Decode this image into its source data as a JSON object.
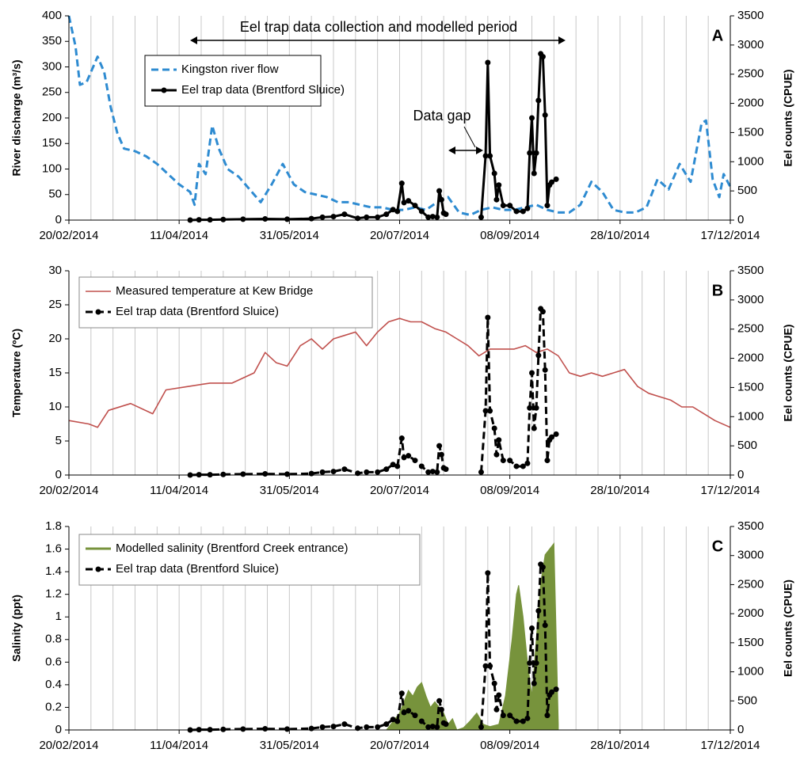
{
  "chart_data": [
    {
      "type": "line",
      "panel": "A",
      "ylabel": "River discharge (m³/s)",
      "y2label": "Eel counts (CPUE)",
      "annotations": [
        "Eel trap data collection and modelled period",
        "Data gap"
      ],
      "xlim": [
        "20/02/2014",
        "17/12/2014"
      ],
      "xticks": [
        "20/02/2014",
        "11/04/2014",
        "31/05/2014",
        "20/07/2014",
        "08/09/2014",
        "28/10/2014",
        "17/12/2014"
      ],
      "ylim": [
        0,
        400
      ],
      "yticks": [
        0,
        50,
        100,
        150,
        200,
        250,
        300,
        350,
        400
      ],
      "y2lim": [
        0,
        3500
      ],
      "y2ticks": [
        0,
        500,
        1000,
        1500,
        2000,
        2500,
        3000,
        3500
      ],
      "grid": true,
      "series": [
        {
          "name": "Kingston river flow",
          "color": "#2e8bd1",
          "style": "dashed",
          "markers": false,
          "x": [
            "20/02/2014",
            "23/02/2014",
            "25/02/2014",
            "28/02/2014",
            "03/03/2014",
            "05/03/2014",
            "08/03/2014",
            "11/03/2014",
            "14/03/2014",
            "17/03/2014",
            "22/03/2014",
            "27/03/2014",
            "01/04/2014",
            "06/04/2014",
            "11/04/2014",
            "16/04/2014",
            "18/04/2014",
            "20/04/2014",
            "23/04/2014",
            "26/04/2014",
            "29/04/2014",
            "03/05/2014",
            "08/05/2014",
            "13/05/2014",
            "18/05/2014",
            "23/05/2014",
            "28/05/2014",
            "02/06/2014",
            "07/06/2014",
            "12/06/2014",
            "17/06/2014",
            "22/06/2014",
            "27/06/2014",
            "02/07/2014",
            "07/07/2014",
            "12/07/2014",
            "17/07/2014",
            "22/07/2014",
            "27/07/2014",
            "01/08/2014",
            "06/08/2014",
            "11/08/2014",
            "16/08/2014",
            "21/08/2014",
            "26/08/2014",
            "31/08/2014",
            "05/09/2014",
            "10/09/2014",
            "15/09/2014",
            "20/09/2014",
            "25/09/2014",
            "30/09/2014",
            "05/10/2014",
            "10/10/2014",
            "15/10/2014",
            "20/10/2014",
            "25/10/2014",
            "30/10/2014",
            "04/11/2014",
            "09/11/2014",
            "14/11/2014",
            "19/11/2014",
            "24/11/2014",
            "29/11/2014",
            "04/12/2014",
            "06/12/2014",
            "09/12/2014",
            "12/12/2014",
            "14/12/2014",
            "17/12/2014"
          ],
          "values": [
            400,
            340,
            265,
            270,
            300,
            320,
            290,
            220,
            170,
            140,
            135,
            125,
            110,
            90,
            70,
            55,
            30,
            110,
            90,
            185,
            140,
            100,
            85,
            60,
            35,
            70,
            110,
            70,
            55,
            50,
            45,
            35,
            35,
            30,
            25,
            25,
            20,
            20,
            25,
            20,
            35,
            45,
            15,
            10,
            20,
            25,
            20,
            20,
            25,
            30,
            20,
            15,
            15,
            30,
            75,
            55,
            20,
            15,
            15,
            25,
            80,
            60,
            110,
            75,
            190,
            195,
            80,
            45,
            90,
            65
          ]
        },
        {
          "name": "Eel trap data (Brentford Sluice)",
          "color": "#000000",
          "style": "solid",
          "markers": true,
          "axis": "y2",
          "x": [
            "16/04/2014",
            "20/04/2014",
            "25/04/2014",
            "01/05/2014",
            "10/05/2014",
            "20/05/2014",
            "30/05/2014",
            "10/06/2014",
            "15/06/2014",
            "20/06/2014",
            "25/06/2014",
            "01/07/2014",
            "05/07/2014",
            "10/07/2014",
            "14/07/2014",
            "17/07/2014",
            "19/07/2014",
            "21/07/2014",
            "22/07/2014",
            "24/07/2014",
            "27/07/2014",
            "30/07/2014",
            "02/08/2014",
            "04/08/2014",
            "06/08/2014",
            "07/08/2014",
            "08/08/2014",
            "09/08/2014",
            "10/08/2014",
            "18/08/2014",
            "26/08/2014",
            "28/08/2014",
            "29/08/2014",
            "30/08/2014",
            "01/09/2014",
            "02/09/2014",
            "03/09/2014",
            "05/09/2014",
            "08/09/2014",
            "11/09/2014",
            "14/09/2014",
            "16/09/2014",
            "17/09/2014",
            "18/09/2014",
            "19/09/2014",
            "20/09/2014",
            "21/09/2014",
            "22/09/2014",
            "23/09/2014",
            "24/09/2014",
            "25/09/2014",
            "26/09/2014",
            "27/09/2014",
            "29/09/2014"
          ],
          "values": [
            0,
            5,
            5,
            10,
            15,
            20,
            15,
            25,
            50,
            60,
            100,
            30,
            50,
            50,
            100,
            180,
            150,
            630,
            300,
            330,
            250,
            150,
            50,
            60,
            50,
            500,
            350,
            120,
            100,
            null,
            50,
            1100,
            2700,
            1100,
            800,
            350,
            600,
            250,
            250,
            150,
            150,
            200,
            1150,
            1750,
            800,
            1150,
            2050,
            2850,
            2800,
            1800,
            250,
            600,
            650,
            700
          ]
        }
      ]
    },
    {
      "type": "line",
      "panel": "B",
      "ylabel": "Temperature (ºC)",
      "y2label": "Eel counts (CPUE)",
      "xlim": [
        "20/02/2014",
        "17/12/2014"
      ],
      "xticks": [
        "20/02/2014",
        "11/04/2014",
        "31/05/2014",
        "20/07/2014",
        "08/09/2014",
        "28/10/2014",
        "17/12/2014"
      ],
      "ylim": [
        0,
        30
      ],
      "yticks": [
        0,
        5,
        10,
        15,
        20,
        25,
        30
      ],
      "y2lim": [
        0,
        3500
      ],
      "y2ticks": [
        0,
        500,
        1000,
        1500,
        2000,
        2500,
        3000,
        3500
      ],
      "grid": true,
      "series": [
        {
          "name": "Measured temperature at Kew Bridge",
          "color": "#c0504d",
          "style": "thin",
          "markers": false,
          "x": [
            "20/02/2014",
            "01/03/2014",
            "05/03/2014",
            "10/03/2014",
            "20/03/2014",
            "30/03/2014",
            "05/04/2014",
            "15/04/2014",
            "25/04/2014",
            "05/05/2014",
            "15/05/2014",
            "20/05/2014",
            "25/05/2014",
            "30/05/2014",
            "05/06/2014",
            "10/06/2014",
            "15/06/2014",
            "20/06/2014",
            "25/06/2014",
            "30/06/2014",
            "05/07/2014",
            "10/07/2014",
            "15/07/2014",
            "20/07/2014",
            "25/07/2014",
            "30/07/2014",
            "05/08/2014",
            "10/08/2014",
            "15/08/2014",
            "20/08/2014",
            "25/08/2014",
            "30/08/2014",
            "05/09/2014",
            "10/09/2014",
            "15/09/2014",
            "20/09/2014",
            "25/09/2014",
            "30/09/2014",
            "05/10/2014",
            "10/10/2014",
            "15/10/2014",
            "20/10/2014",
            "25/10/2014",
            "30/10/2014",
            "05/11/2014",
            "10/11/2014",
            "15/11/2014",
            "20/11/2014",
            "25/11/2014",
            "30/11/2014",
            "05/12/2014",
            "10/12/2014",
            "17/12/2014"
          ],
          "values": [
            8,
            7.5,
            7,
            9.5,
            10.5,
            9,
            12.5,
            13,
            13.5,
            13.5,
            15,
            18,
            16.5,
            16,
            19,
            20,
            18.5,
            20,
            20.5,
            21,
            19,
            21,
            22.5,
            23,
            22.5,
            22.5,
            21.5,
            21,
            20,
            19,
            17.5,
            18.5,
            18.5,
            18.5,
            19,
            18,
            18.5,
            17.5,
            15,
            14.5,
            15,
            14.5,
            15,
            15.5,
            13,
            12,
            11.5,
            11,
            10,
            10,
            9,
            8,
            7
          ]
        },
        {
          "name": "Eel trap data (Brentford Sluice)",
          "color": "#000000",
          "style": "dashed",
          "markers": true,
          "axis": "y2",
          "x": [
            "16/04/2014",
            "20/04/2014",
            "25/04/2014",
            "01/05/2014",
            "10/05/2014",
            "20/05/2014",
            "30/05/2014",
            "10/06/2014",
            "15/06/2014",
            "20/06/2014",
            "25/06/2014",
            "01/07/2014",
            "05/07/2014",
            "10/07/2014",
            "14/07/2014",
            "17/07/2014",
            "19/07/2014",
            "21/07/2014",
            "22/07/2014",
            "24/07/2014",
            "27/07/2014",
            "30/07/2014",
            "02/08/2014",
            "04/08/2014",
            "06/08/2014",
            "07/08/2014",
            "08/08/2014",
            "09/08/2014",
            "10/08/2014",
            "18/08/2014",
            "26/08/2014",
            "28/08/2014",
            "29/08/2014",
            "30/08/2014",
            "01/09/2014",
            "02/09/2014",
            "03/09/2014",
            "05/09/2014",
            "08/09/2014",
            "11/09/2014",
            "14/09/2014",
            "16/09/2014",
            "17/09/2014",
            "18/09/2014",
            "19/09/2014",
            "20/09/2014",
            "21/09/2014",
            "22/09/2014",
            "23/09/2014",
            "24/09/2014",
            "25/09/2014",
            "26/09/2014",
            "27/09/2014",
            "29/09/2014"
          ],
          "values": [
            0,
            5,
            5,
            10,
            15,
            20,
            15,
            25,
            50,
            60,
            100,
            30,
            50,
            50,
            100,
            180,
            150,
            630,
            300,
            330,
            250,
            150,
            50,
            60,
            50,
            500,
            350,
            120,
            100,
            null,
            50,
            1100,
            2700,
            1100,
            800,
            350,
            600,
            250,
            250,
            150,
            150,
            200,
            1150,
            1750,
            800,
            1150,
            2050,
            2850,
            2800,
            1800,
            250,
            600,
            650,
            700
          ]
        }
      ]
    },
    {
      "type": "line",
      "panel": "C",
      "ylabel": "Salinity (ppt)",
      "y2label": "Eel counts (CPUE)",
      "xlim": [
        "20/02/2014",
        "17/12/2014"
      ],
      "xticks": [
        "20/02/2014",
        "11/04/2014",
        "31/05/2014",
        "20/07/2014",
        "08/09/2014",
        "28/10/2014",
        "17/12/2014"
      ],
      "ylim": [
        0,
        1.8
      ],
      "yticks": [
        0,
        0.2,
        0.4,
        0.6,
        0.8,
        1,
        1.2,
        1.4,
        1.6,
        1.8
      ],
      "y2lim": [
        0,
        3500
      ],
      "y2ticks": [
        0,
        500,
        1000,
        1500,
        2000,
        2500,
        3000,
        3500
      ],
      "grid": true,
      "series": [
        {
          "name": "Modelled salinity (Brentford Creek entrance)",
          "color": "#77933c",
          "style": "area",
          "markers": false,
          "x": [
            "14/07/2014",
            "18/07/2014",
            "20/07/2014",
            "22/07/2014",
            "24/07/2014",
            "26/07/2014",
            "28/07/2014",
            "30/07/2014",
            "01/08/2014",
            "03/08/2014",
            "05/08/2014",
            "07/08/2014",
            "09/08/2014",
            "11/08/2014",
            "13/08/2014",
            "15/08/2014",
            "18/08/2014",
            "21/08/2014",
            "24/08/2014",
            "27/08/2014",
            "30/08/2014",
            "03/09/2014",
            "06/09/2014",
            "09/09/2014",
            "11/09/2014",
            "12/09/2014",
            "14/09/2014",
            "16/09/2014",
            "18/09/2014",
            "20/09/2014",
            "22/09/2014",
            "24/09/2014",
            "26/09/2014",
            "28/09/2014",
            "30/09/2014"
          ],
          "values": [
            0,
            0.1,
            0.15,
            0.25,
            0.35,
            0.3,
            0.38,
            0.42,
            0.3,
            0.2,
            0.25,
            0.2,
            0.15,
            0.05,
            0.1,
            0,
            0.02,
            0.08,
            0.15,
            0.05,
            0.03,
            0.05,
            0.3,
            0.8,
            1.2,
            1.28,
            1,
            0.6,
            0.3,
            0.8,
            1.3,
            1.55,
            1.6,
            1.65,
            0.05
          ]
        },
        {
          "name": "Eel trap data (Brentford Sluice)",
          "color": "#000000",
          "style": "dashed",
          "markers": true,
          "axis": "y2",
          "x": [
            "16/04/2014",
            "20/04/2014",
            "25/04/2014",
            "01/05/2014",
            "10/05/2014",
            "20/05/2014",
            "30/05/2014",
            "10/06/2014",
            "15/06/2014",
            "20/06/2014",
            "25/06/2014",
            "01/07/2014",
            "05/07/2014",
            "10/07/2014",
            "14/07/2014",
            "17/07/2014",
            "19/07/2014",
            "21/07/2014",
            "22/07/2014",
            "24/07/2014",
            "27/07/2014",
            "30/07/2014",
            "02/08/2014",
            "04/08/2014",
            "06/08/2014",
            "07/08/2014",
            "08/08/2014",
            "09/08/2014",
            "10/08/2014",
            "18/08/2014",
            "26/08/2014",
            "28/08/2014",
            "29/08/2014",
            "30/08/2014",
            "01/09/2014",
            "02/09/2014",
            "03/09/2014",
            "05/09/2014",
            "08/09/2014",
            "11/09/2014",
            "14/09/2014",
            "16/09/2014",
            "17/09/2014",
            "18/09/2014",
            "19/09/2014",
            "20/09/2014",
            "21/09/2014",
            "22/09/2014",
            "23/09/2014",
            "24/09/2014",
            "25/09/2014",
            "26/09/2014",
            "27/09/2014",
            "29/09/2014"
          ],
          "values": [
            0,
            5,
            5,
            10,
            15,
            20,
            15,
            25,
            50,
            60,
            100,
            30,
            50,
            50,
            100,
            180,
            150,
            630,
            300,
            330,
            250,
            150,
            50,
            60,
            50,
            500,
            350,
            120,
            100,
            null,
            50,
            1100,
            2700,
            1100,
            800,
            350,
            600,
            250,
            250,
            150,
            150,
            200,
            1150,
            1750,
            800,
            1150,
            2050,
            2850,
            2800,
            1800,
            250,
            600,
            650,
            700
          ]
        }
      ]
    }
  ]
}
